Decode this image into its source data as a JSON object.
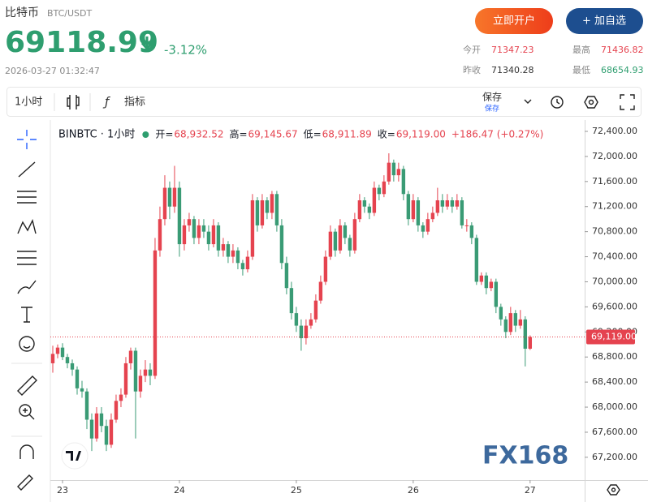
{
  "header": {
    "name": "比特币",
    "symbol": "BTC/USDT",
    "price": "69118.99",
    "change": "-3.12%",
    "time": "2026-03-27 01:32:47",
    "buttons": [
      "立即开户",
      "+ 加自选"
    ],
    "stats": [
      {
        "label": "今开",
        "value": "71347.23"
      },
      {
        "label": "最高",
        "value": "71436.82"
      },
      {
        "label": "昨收",
        "value": "71340.28"
      },
      {
        "label": "最低",
        "value": "68654.93"
      }
    ]
  },
  "toolbar": {
    "interval": "1小时",
    "indicators": "指标",
    "save": "保存",
    "save_sub": "保存"
  },
  "chart_data": {
    "type": "candlestick",
    "legend": {
      "symbol": "BINBTC · 1小时",
      "items": [
        {
          "label": "开=",
          "value": "68,932.52"
        },
        {
          "label": "高=",
          "value": "69,145.67"
        },
        {
          "label": "低=",
          "value": "68,911.89"
        },
        {
          "label": "收=",
          "value": "69,119.00"
        }
      ],
      "change": "+186.47 (+0.27%)"
    },
    "up_color": "#e5434f",
    "down_color": "#3a9b75",
    "ohlc": [
      [
        68700,
        68980,
        68550,
        68850
      ],
      [
        68850,
        69000,
        68780,
        68950
      ],
      [
        68950,
        69020,
        68750,
        68800
      ],
      [
        68800,
        68850,
        68620,
        68700
      ],
      [
        68700,
        68760,
        68500,
        68600
      ],
      [
        68600,
        68650,
        68200,
        68300
      ],
      [
        68300,
        68420,
        68150,
        68250
      ],
      [
        68250,
        68300,
        67650,
        67800
      ],
      [
        67800,
        67900,
        67300,
        67500
      ],
      [
        67500,
        68000,
        67450,
        67900
      ],
      [
        67900,
        68000,
        67600,
        67700
      ],
      [
        67700,
        67800,
        67300,
        67400
      ],
      [
        67400,
        67900,
        67350,
        67800
      ],
      [
        67800,
        68200,
        67750,
        68100
      ],
      [
        68100,
        68300,
        68000,
        68200
      ],
      [
        68200,
        68800,
        68150,
        68700
      ],
      [
        68700,
        68950,
        68600,
        68900
      ],
      [
        68900,
        68950,
        67500,
        68250
      ],
      [
        68250,
        68600,
        68150,
        68500
      ],
      [
        68500,
        68750,
        68400,
        68600
      ],
      [
        68600,
        68700,
        68350,
        68500
      ],
      [
        68500,
        70700,
        68450,
        70500
      ],
      [
        70500,
        71200,
        70400,
        71000
      ],
      [
        71000,
        71700,
        70900,
        71500
      ],
      [
        71500,
        71600,
        71000,
        71200
      ],
      [
        71200,
        71850,
        71100,
        71500
      ],
      [
        71500,
        71600,
        70400,
        70600
      ],
      [
        70600,
        71000,
        70500,
        70900
      ],
      [
        70900,
        71100,
        70800,
        71000
      ],
      [
        71000,
        71050,
        70600,
        70700
      ],
      [
        70700,
        71000,
        70600,
        70900
      ],
      [
        70900,
        71000,
        70700,
        70800
      ],
      [
        70800,
        70900,
        70500,
        70600
      ],
      [
        70600,
        71000,
        70550,
        70900
      ],
      [
        70900,
        70950,
        70400,
        70500
      ],
      [
        70500,
        70700,
        70400,
        70600
      ],
      [
        70600,
        70650,
        70300,
        70400
      ],
      [
        70400,
        70600,
        70300,
        70500
      ],
      [
        70500,
        70550,
        70200,
        70300
      ],
      [
        70300,
        70350,
        70100,
        70200
      ],
      [
        70200,
        70500,
        70150,
        70400
      ],
      [
        70400,
        71400,
        70350,
        71300
      ],
      [
        71300,
        71350,
        70800,
        70900
      ],
      [
        70900,
        71400,
        70850,
        71300
      ],
      [
        71300,
        71350,
        71000,
        71100
      ],
      [
        71100,
        71450,
        71000,
        71400
      ],
      [
        71400,
        71450,
        70800,
        70900
      ],
      [
        70900,
        71000,
        70200,
        70300
      ],
      [
        70300,
        70400,
        69800,
        69900
      ],
      [
        69900,
        70000,
        69400,
        69500
      ],
      [
        69500,
        69600,
        69200,
        69300
      ],
      [
        69300,
        69400,
        68900,
        69100
      ],
      [
        69100,
        69400,
        69000,
        69300
      ],
      [
        69300,
        69500,
        69250,
        69400
      ],
      [
        69400,
        69800,
        69350,
        69700
      ],
      [
        69700,
        70100,
        69650,
        70000
      ],
      [
        70000,
        70500,
        69950,
        70400
      ],
      [
        70400,
        70900,
        70350,
        70800
      ],
      [
        70800,
        70850,
        70400,
        70500
      ],
      [
        70500,
        71000,
        70450,
        70900
      ],
      [
        70900,
        70950,
        70600,
        70700
      ],
      [
        70700,
        70750,
        70400,
        70500
      ],
      [
        70500,
        71100,
        70450,
        71000
      ],
      [
        71000,
        71400,
        70950,
        71300
      ],
      [
        71300,
        71350,
        71100,
        71200
      ],
      [
        71200,
        71250,
        71000,
        71100
      ],
      [
        71100,
        71600,
        71050,
        71500
      ],
      [
        71500,
        71550,
        71300,
        71400
      ],
      [
        71400,
        71700,
        71350,
        71600
      ],
      [
        71600,
        72050,
        71550,
        71900
      ],
      [
        71900,
        71950,
        71600,
        71700
      ],
      [
        71700,
        71900,
        71600,
        71800
      ],
      [
        71800,
        71850,
        71300,
        71400
      ],
      [
        71400,
        71450,
        70900,
        71000
      ],
      [
        71000,
        71400,
        70950,
        71300
      ],
      [
        71300,
        71350,
        70800,
        70900
      ],
      [
        70900,
        70950,
        70700,
        70800
      ],
      [
        70800,
        71100,
        70750,
        71000
      ],
      [
        71000,
        71200,
        70950,
        71100
      ],
      [
        71100,
        71500,
        71050,
        71300
      ],
      [
        71300,
        71400,
        71100,
        71200
      ],
      [
        71200,
        71400,
        71150,
        71300
      ],
      [
        71300,
        71350,
        71100,
        71200
      ],
      [
        71200,
        71400,
        71150,
        71300
      ],
      [
        71300,
        71350,
        70850,
        70900
      ],
      [
        70900,
        71000,
        70800,
        70900
      ],
      [
        70900,
        70950,
        70600,
        70700
      ],
      [
        70700,
        70750,
        69950,
        70000
      ],
      [
        70000,
        70150,
        69950,
        70100
      ],
      [
        70100,
        70150,
        69800,
        69900
      ],
      [
        69900,
        70050,
        69850,
        70000
      ],
      [
        70000,
        70050,
        69500,
        69600
      ],
      [
        69600,
        69650,
        69300,
        69400
      ],
      [
        69400,
        69450,
        69100,
        69200
      ],
      [
        69200,
        69600,
        69150,
        69500
      ],
      [
        69500,
        69550,
        69200,
        69300
      ],
      [
        69300,
        69550,
        69250,
        69400
      ],
      [
        69400,
        69450,
        68650,
        68932.52
      ],
      [
        68932.52,
        69145.67,
        68911.89,
        69119
      ]
    ],
    "xlim": [
      -0.5,
      109.2
    ],
    "xticks": [
      {
        "value": 2,
        "label": "23"
      },
      {
        "value": 26,
        "label": "24"
      },
      {
        "value": 50,
        "label": "25"
      },
      {
        "value": 74,
        "label": "26"
      },
      {
        "value": 98,
        "label": "27"
      }
    ],
    "ylim": [
      66836,
      72581
    ],
    "yticks": [
      {
        "value": 67200,
        "label": "67,200.00"
      },
      {
        "value": 67600,
        "label": "67,600.00"
      },
      {
        "value": 68000,
        "label": "68,000.00"
      },
      {
        "value": 68400,
        "label": "68,400.00"
      },
      {
        "value": 68800,
        "label": "68,800.00"
      },
      {
        "value": 69200,
        "label": "69,200.00"
      },
      {
        "value": 69600,
        "label": "69,600.00"
      },
      {
        "value": 70000,
        "label": "70,000.00"
      },
      {
        "value": 70400,
        "label": "70,400.00"
      },
      {
        "value": 70800,
        "label": "70,800.00"
      },
      {
        "value": 71200,
        "label": "71,200.00"
      },
      {
        "value": 71600,
        "label": "71,600.00"
      },
      {
        "value": 72000,
        "label": "72,000.00"
      },
      {
        "value": 72400,
        "label": "72,400.00"
      }
    ],
    "price_line": {
      "value": 69119,
      "label": "69,119.00"
    },
    "watermark": "FX168"
  }
}
